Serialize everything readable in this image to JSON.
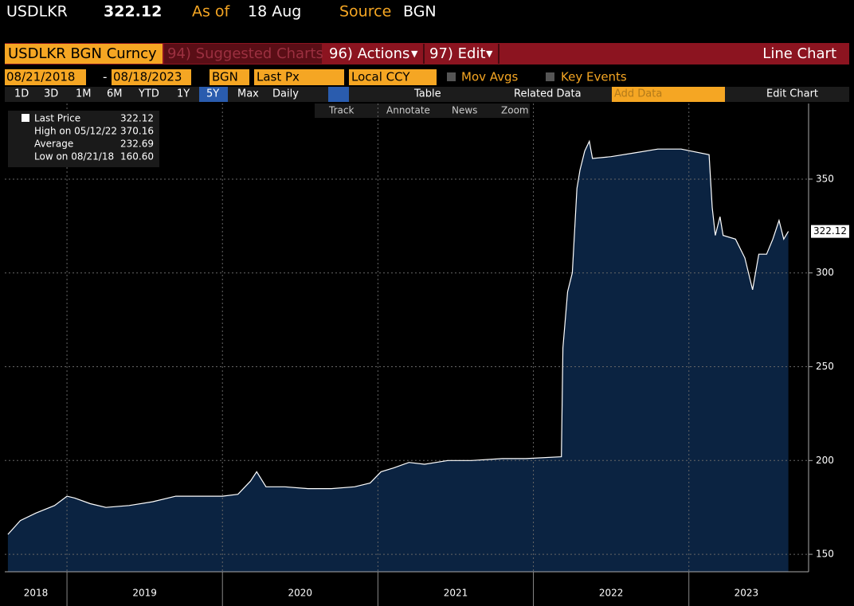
{
  "header": {
    "ticker": "USDLKR",
    "price": "322.12",
    "as_of_label": "As of",
    "as_of": "18 Aug",
    "source_label": "Source",
    "source": "BGN"
  },
  "toolbar": {
    "security": "USDLKR BGN Curncy",
    "suggested": "94) Suggested Charts",
    "actions": "96) Actions",
    "edit": "97) Edit",
    "chart_kind": "Line Chart",
    "start_date": "08/21/2018",
    "end_date": "08/18/2023",
    "source_field": "BGN",
    "field": "Last Px",
    "currency": "Local CCY",
    "mov_avgs": "Mov Avgs",
    "key_events": "Key Events",
    "periods": [
      "1D",
      "3D",
      "1M",
      "6M",
      "YTD",
      "1Y",
      "5Y",
      "Max"
    ],
    "frequency": "Daily",
    "table": "Table",
    "related": "Related Data",
    "add_data": "Add Data",
    "edit_chart": "Edit Chart",
    "tools": [
      "Track",
      "Annotate",
      "News",
      "Zoom"
    ]
  },
  "legend_box": {
    "rows": [
      {
        "label": "Last Price",
        "value": "322.12"
      },
      {
        "label": "High on 05/12/22",
        "value": "370.16"
      },
      {
        "label": "Average",
        "value": "232.69"
      },
      {
        "label": "Low on 08/21/18",
        "value": "160.60"
      }
    ]
  },
  "chart_data": {
    "type": "area",
    "color": "#ffffff",
    "fill": "#0b2341",
    "grid": true,
    "x": [
      2018.62,
      2018.7,
      2018.8,
      2018.92,
      2019.0,
      2019.05,
      2019.15,
      2019.25,
      2019.4,
      2019.55,
      2019.7,
      2019.85,
      2020.0,
      2020.1,
      2020.18,
      2020.22,
      2020.28,
      2020.4,
      2020.55,
      2020.7,
      2020.85,
      2020.95,
      2021.02,
      2021.1,
      2021.2,
      2021.3,
      2021.45,
      2021.6,
      2021.8,
      2021.95,
      2022.18,
      2022.19,
      2022.22,
      2022.25,
      2022.28,
      2022.3,
      2022.33,
      2022.36,
      2022.38,
      2022.5,
      2022.65,
      2022.8,
      2022.95,
      2023.13,
      2023.15,
      2023.17,
      2023.2,
      2023.22,
      2023.3,
      2023.36,
      2023.41,
      2023.45,
      2023.5,
      2023.54,
      2023.58,
      2023.61,
      2023.64
    ],
    "values": [
      160.6,
      168,
      172,
      176,
      181,
      180,
      177,
      175,
      176,
      178,
      181,
      181,
      181,
      182,
      189,
      194,
      186,
      186,
      185,
      185,
      186,
      188,
      194,
      196,
      199,
      198,
      200,
      200,
      201,
      201,
      202,
      260,
      290,
      300,
      345,
      355,
      365,
      370.16,
      361,
      362,
      364,
      366,
      366,
      363,
      335,
      320,
      330,
      320,
      318,
      308,
      291,
      310,
      310,
      318,
      328,
      318,
      322.12
    ],
    "xlim": [
      2018.6,
      2023.77
    ],
    "ylim": [
      140.7,
      390.3
    ],
    "yticks": [
      150,
      200,
      250,
      300,
      350
    ],
    "xticks": [
      {
        "value": 2018.8,
        "label": "2018"
      },
      {
        "value": 2019.5,
        "label": "2019"
      },
      {
        "value": 2020.5,
        "label": "2020"
      },
      {
        "value": 2021.5,
        "label": "2021"
      },
      {
        "value": 2022.5,
        "label": "2022"
      },
      {
        "value": 2023.37,
        "label": "2023"
      }
    ],
    "year_lines": [
      2019,
      2020,
      2021,
      2022,
      2023
    ]
  }
}
